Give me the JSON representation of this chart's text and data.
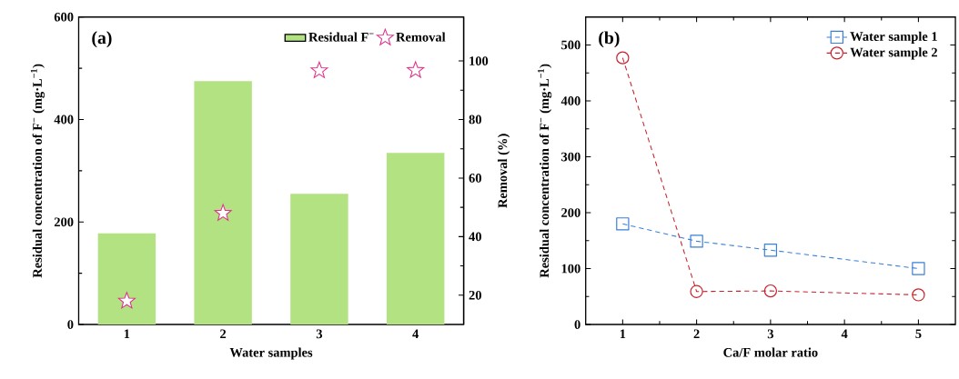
{
  "chart_data": [
    {
      "type": "bar",
      "xlabel": "Water samples",
      "ylabel": "Residual concentration of F$^{−}$ (mg·L$^{−1}$)",
      "y2label": "Removal (%)",
      "categories": [
        "1",
        "2",
        "3",
        "4"
      ],
      "series": [
        {
          "name": "Residual F$^{−}$",
          "type": "bar",
          "color": "#b3e283",
          "values": [
            178,
            475,
            255,
            335
          ]
        },
        {
          "name": "Removal",
          "type": "scatter",
          "axis": "y2",
          "marker": "star",
          "color": "#e0308a",
          "x": [
            "1",
            "2",
            "3",
            "4"
          ],
          "values": [
            18,
            48,
            96.7,
            96.8
          ]
        }
      ],
      "ylim": [
        0,
        600
      ],
      "yticks": [
        0,
        200,
        400,
        600
      ],
      "y2lim": [
        10,
        115
      ],
      "y2ticks": [
        20,
        40,
        60,
        80,
        100
      ],
      "legend": "top right",
      "annotations": [
        "(a)"
      ]
    },
    {
      "type": "line",
      "xlabel": "Ca/F molar ratio",
      "ylabel": "Residual concentration of F$^{−}$ (mg·L$^{−1}$)",
      "x": [
        1,
        2,
        3,
        5
      ],
      "series": [
        {
          "name": "Water sample 1",
          "color": "#3a7fd5",
          "marker": "square",
          "line_style": "dashed",
          "values": [
            180,
            149,
            133,
            100
          ]
        },
        {
          "name": "Water sample 2",
          "color": "#c8232c",
          "marker": "circle",
          "line_style": "dashed",
          "values": [
            477,
            59,
            60,
            53
          ]
        }
      ],
      "xlim": [
        0.5,
        5.5
      ],
      "xticks": [
        1,
        2,
        3,
        4,
        5
      ],
      "ylim": [
        0,
        550
      ],
      "yticks": [
        0,
        100,
        200,
        300,
        400,
        500
      ],
      "legend": "top right",
      "annotations": [
        "(b)"
      ]
    }
  ]
}
